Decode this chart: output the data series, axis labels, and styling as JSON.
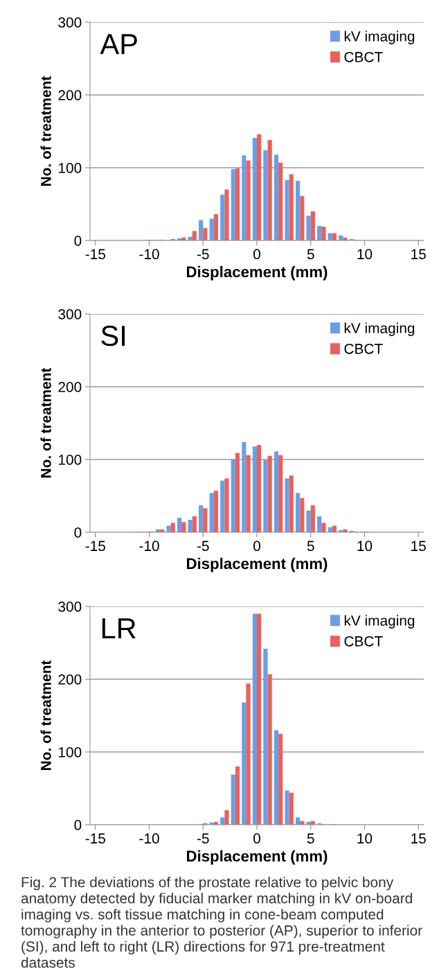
{
  "chart_data": [
    {
      "type": "bar",
      "title": "AP",
      "xlabel": "Displacement (mm)",
      "ylabel": "No. of treatment",
      "x": [
        -15,
        -14,
        -13,
        -12,
        -11,
        -10,
        -9,
        -8,
        -7,
        -6,
        -5,
        -4,
        -3,
        -2,
        -1,
        0,
        1,
        2,
        3,
        4,
        5,
        6,
        7,
        8,
        9,
        10,
        11,
        12,
        13,
        14,
        15
      ],
      "series": [
        {
          "name": "kV imaging",
          "color": "#6a9fe6",
          "values": [
            0,
            0,
            0,
            0,
            0,
            1,
            1,
            1,
            3,
            5,
            28,
            30,
            63,
            98,
            117,
            141,
            124,
            118,
            83,
            82,
            34,
            20,
            10,
            7,
            2,
            0,
            0,
            0,
            0,
            0,
            0
          ]
        },
        {
          "name": "CBCT",
          "color": "#e8625c",
          "values": [
            0,
            0,
            0,
            0,
            0,
            1,
            1,
            2,
            4,
            13,
            17,
            36,
            70,
            99,
            110,
            146,
            138,
            107,
            91,
            61,
            40,
            19,
            10,
            4,
            1,
            0,
            0,
            0,
            0,
            0,
            0
          ]
        }
      ],
      "xlim": [
        -15.5,
        15.5
      ],
      "xticks": [
        -15,
        -10,
        -5,
        0,
        5,
        10,
        15
      ],
      "ylim": [
        0,
        300
      ],
      "yticks": [
        0,
        100,
        200,
        300
      ],
      "grid": "y",
      "legend": "top right"
    },
    {
      "type": "bar",
      "title": "SI",
      "xlabel": "Displacement (mm)",
      "ylabel": "No. of treatment",
      "x": [
        -15,
        -14,
        -13,
        -12,
        -11,
        -10,
        -9,
        -8,
        -7,
        -6,
        -5,
        -4,
        -3,
        -2,
        -1,
        0,
        1,
        2,
        3,
        4,
        5,
        6,
        7,
        8,
        9,
        10,
        11,
        12,
        13,
        14,
        15
      ],
      "series": [
        {
          "name": "kV imaging",
          "color": "#6a9fe6",
          "values": [
            0,
            0,
            0,
            0,
            1,
            1,
            4,
            9,
            20,
            17,
            37,
            54,
            71,
            100,
            124,
            118,
            99,
            111,
            74,
            54,
            30,
            22,
            7,
            3,
            2,
            1,
            0,
            0,
            0,
            0,
            0
          ]
        },
        {
          "name": "CBCT",
          "color": "#e8625c",
          "values": [
            0,
            0,
            0,
            0,
            1,
            1,
            4,
            13,
            14,
            22,
            33,
            57,
            74,
            109,
            106,
            120,
            105,
            106,
            78,
            47,
            37,
            13,
            9,
            4,
            1,
            1,
            0,
            0,
            0,
            0,
            0
          ]
        }
      ],
      "xlim": [
        -15.5,
        15.5
      ],
      "xticks": [
        -15,
        -10,
        -5,
        0,
        5,
        10,
        15
      ],
      "ylim": [
        0,
        300
      ],
      "yticks": [
        0,
        100,
        200,
        300
      ],
      "grid": "y",
      "legend": "top right"
    },
    {
      "type": "bar",
      "title": "LR",
      "xlabel": "Displacement (mm)",
      "ylabel": "No. of treatment",
      "x": [
        -15,
        -14,
        -13,
        -12,
        -11,
        -10,
        -9,
        -8,
        -7,
        -6,
        -5,
        -4,
        -3,
        -2,
        -1,
        0,
        1,
        2,
        3,
        4,
        5,
        6,
        7,
        8,
        9,
        10,
        11,
        12,
        13,
        14,
        15
      ],
      "series": [
        {
          "name": "kV imaging",
          "color": "#6a9fe6",
          "values": [
            0,
            0,
            0,
            0,
            0,
            0,
            0,
            0,
            0,
            0,
            1,
            3,
            10,
            69,
            168,
            290,
            242,
            130,
            47,
            10,
            4,
            2,
            1,
            0,
            0,
            0,
            0,
            0,
            0,
            0,
            0
          ]
        },
        {
          "name": "CBCT",
          "color": "#e8625c",
          "values": [
            0,
            0,
            0,
            0,
            0,
            0,
            0,
            0,
            0,
            0,
            2,
            4,
            20,
            80,
            194,
            290,
            207,
            125,
            44,
            5,
            5,
            1,
            1,
            0,
            0,
            0,
            0,
            0,
            0,
            0,
            0
          ]
        }
      ],
      "xlim": [
        -15.5,
        15.5
      ],
      "xticks": [
        -15,
        -10,
        -5,
        0,
        5,
        10,
        15
      ],
      "ylim": [
        0,
        300
      ],
      "yticks": [
        0,
        100,
        200,
        300
      ],
      "grid": "y",
      "legend": "top right",
      "annotations": [
        "Fig. 2 The deviations of the prostate relative to pelvic bony anatomy detected by fiducial marker matching in kV on-board imaging vs. soft tissue matching in cone-beam computed tomography in the anterior to posterior (AP), superior to inferior (SI), and left to right (LR) directions for 971 pre-treatment datasets"
      ]
    }
  ]
}
